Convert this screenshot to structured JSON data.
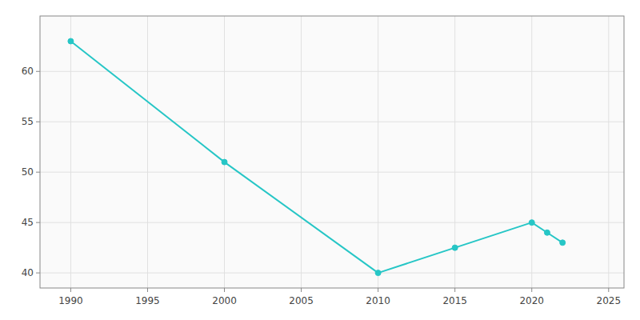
{
  "chart_data": {
    "type": "line",
    "x": [
      1990,
      2000,
      2010,
      2015,
      2020,
      2021,
      2022
    ],
    "values": [
      63,
      51,
      40,
      42.5,
      45,
      44,
      43
    ],
    "color": "#26c6c6",
    "marker": "circle",
    "xlim": [
      1988,
      2026
    ],
    "ylim": [
      38.5,
      65.5
    ],
    "xticks": [
      1990,
      1995,
      2000,
      2005,
      2010,
      2015,
      2020,
      2025
    ],
    "yticks": [
      40,
      45,
      50,
      55,
      60
    ],
    "grid": true
  }
}
